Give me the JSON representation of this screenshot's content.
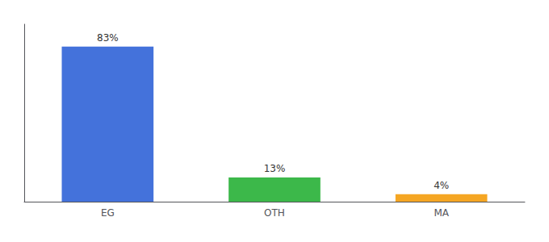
{
  "chart_data": {
    "type": "bar",
    "categories": [
      "EG",
      "OTH",
      "MA"
    ],
    "values": [
      83,
      13,
      4
    ],
    "value_labels": [
      "83%",
      "13%",
      "4%"
    ],
    "data_labels": true,
    "colors": [
      "#4472db",
      "#3cb84a",
      "#f5a623"
    ],
    "ylim": [
      0,
      95
    ],
    "tick_labels": "x",
    "grid": false
  }
}
